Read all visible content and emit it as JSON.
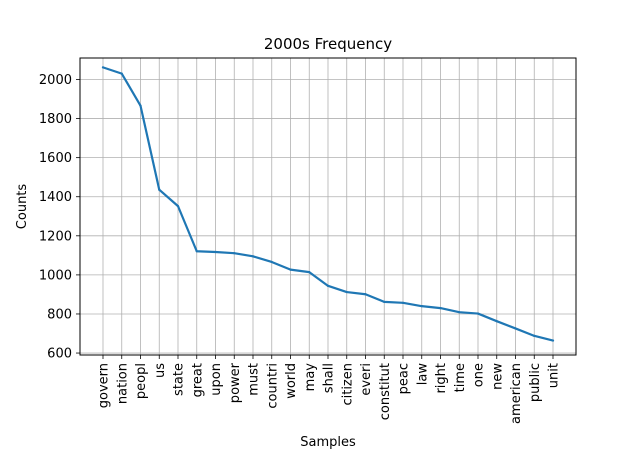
{
  "chart_data": {
    "type": "line",
    "title": "2000s Frequency",
    "xlabel": "Samples",
    "ylabel": "Counts",
    "categories": [
      "govern",
      "nation",
      "peopl",
      "us",
      "state",
      "great",
      "upon",
      "power",
      "must",
      "countri",
      "world",
      "may",
      "shall",
      "citizen",
      "everi",
      "constitut",
      "peac",
      "law",
      "right",
      "time",
      "one",
      "new",
      "american",
      "public",
      "unit"
    ],
    "values": [
      2062,
      2030,
      1866,
      1436,
      1352,
      1121,
      1117,
      1111,
      1095,
      1066,
      1027,
      1014,
      944,
      912,
      901,
      862,
      857,
      840,
      830,
      809,
      802,
      763,
      726,
      688,
      664
    ],
    "ylim": [
      590,
      2110
    ],
    "yticks": [
      600,
      800,
      1000,
      1200,
      1400,
      1600,
      1800,
      2000
    ],
    "grid": true,
    "line_color": "#1f77b4"
  }
}
